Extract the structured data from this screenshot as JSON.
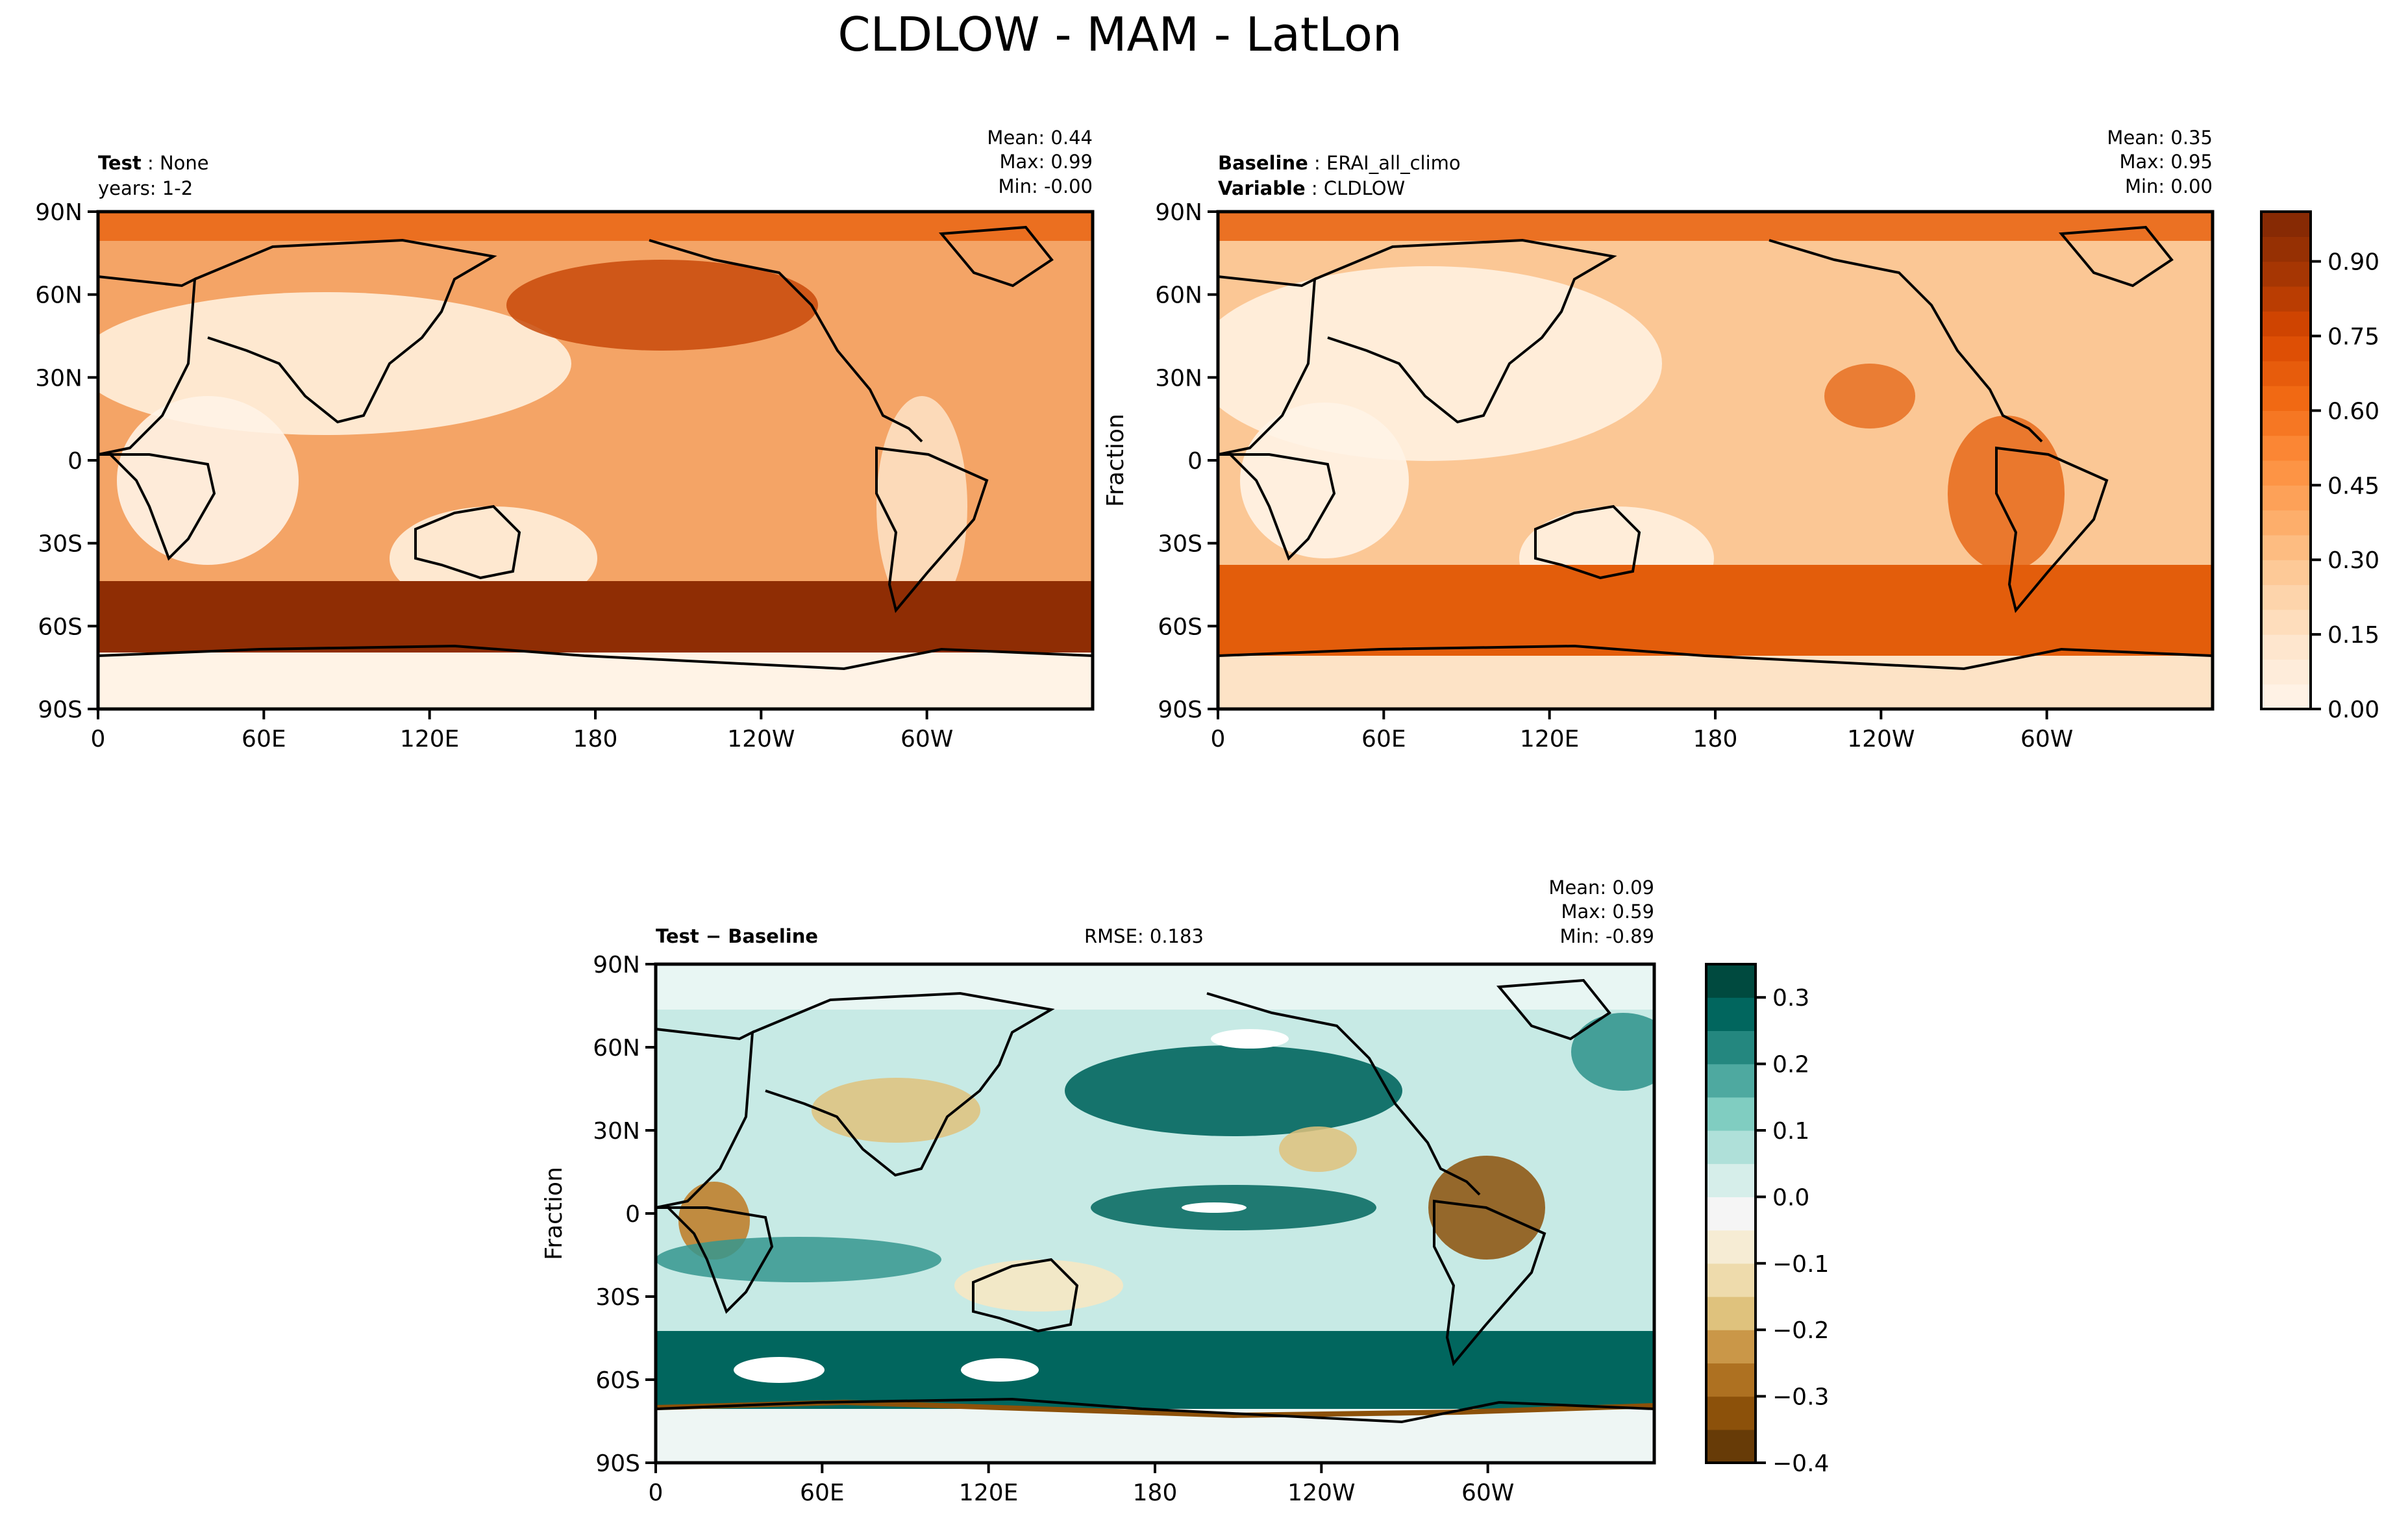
{
  "figure": {
    "title": "CLDLOW - MAM - LatLon"
  },
  "colors": {
    "orange_scale": [
      "#fff5eb",
      "#fee6ce",
      "#fdd0a2",
      "#fdae6b",
      "#fd8d3c",
      "#f16913",
      "#d94801",
      "#a63603",
      "#7f2704"
    ],
    "diff_scale": [
      "#543005",
      "#8c510a",
      "#bf812d",
      "#dfc27d",
      "#f6e8c3",
      "#f5f5f5",
      "#c7eae5",
      "#80cdc1",
      "#35978f",
      "#01665e",
      "#003c30"
    ],
    "coast": "#000000",
    "frame": "#000000"
  },
  "chart_data": [
    {
      "id": "test",
      "type": "heatmap",
      "title_bold": "Test",
      "title_value": "None",
      "subtitle": "years: 1-2",
      "stats": {
        "mean": "Mean:  0.44",
        "max": "Max:  0.99",
        "min": "Min: -0.00"
      },
      "ylabel": "",
      "xlim": [
        0,
        360
      ],
      "ylim": [
        -90,
        90
      ],
      "xticks": [
        "0",
        "60E",
        "120E",
        "180",
        "120W",
        "60W"
      ],
      "yticks": [
        "90N",
        "60N",
        "30N",
        "0",
        "30S",
        "60S",
        "90S"
      ],
      "variable": "CLDLOW",
      "units": "Fraction",
      "mean": 0.44,
      "max": 0.99,
      "min": -0.0
    },
    {
      "id": "baseline",
      "type": "heatmap",
      "title_bold": "Baseline",
      "title_value": "ERAI_all_climo",
      "title2_bold": "Variable",
      "title2_value": "CLDLOW",
      "stats": {
        "mean": "Mean:  0.35",
        "max": "Max:  0.95",
        "min": "Min:  0.00"
      },
      "ylabel": "Fraction",
      "xlim": [
        0,
        360
      ],
      "ylim": [
        -90,
        90
      ],
      "xticks": [
        "0",
        "60E",
        "120E",
        "180",
        "120W",
        "60W"
      ],
      "yticks": [
        "90N",
        "60N",
        "30N",
        "0",
        "30S",
        "60S",
        "90S"
      ],
      "colorbar": {
        "range": [
          0,
          1
        ],
        "ticks": [
          "0.00",
          "0.15",
          "0.30",
          "0.45",
          "0.60",
          "0.75",
          "0.90"
        ],
        "tick_values": [
          0,
          0.15,
          0.3,
          0.45,
          0.6,
          0.75,
          0.9
        ],
        "levels": 20
      },
      "mean": 0.35,
      "max": 0.95,
      "min": 0.0
    },
    {
      "id": "difference",
      "type": "heatmap",
      "title_bold": "Test − Baseline",
      "rmse": "RMSE: 0.183",
      "stats": {
        "mean": "Mean:  0.09",
        "max": "Max:  0.59",
        "min": "Min: -0.89"
      },
      "ylabel": "Fraction",
      "xlim": [
        0,
        360
      ],
      "ylim": [
        -90,
        90
      ],
      "xticks": [
        "0",
        "60E",
        "120E",
        "180",
        "120W",
        "60W"
      ],
      "yticks": [
        "90N",
        "60N",
        "30N",
        "0",
        "30S",
        "60S",
        "90S"
      ],
      "colorbar": {
        "range": [
          -0.4,
          0.35
        ],
        "ticks": [
          "0.3",
          "0.2",
          "0.1",
          "0.0",
          "−0.1",
          "−0.2",
          "−0.3",
          "−0.4"
        ],
        "tick_values": [
          0.3,
          0.2,
          0.1,
          0.0,
          -0.1,
          -0.2,
          -0.3,
          -0.4
        ],
        "levels": 15
      },
      "mean": 0.09,
      "max": 0.59,
      "min": -0.89,
      "rmse_value": 0.183
    }
  ]
}
